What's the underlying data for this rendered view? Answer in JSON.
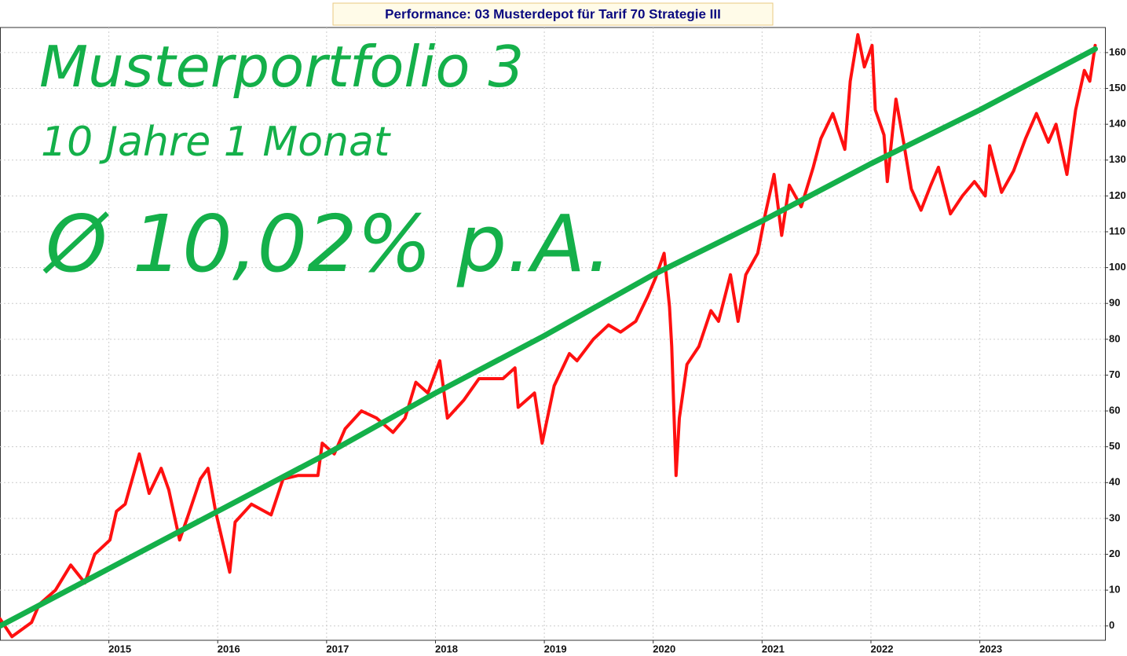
{
  "chart_data": {
    "type": "line",
    "title": "Performance: 03 Musterdepot für Tarif 70 Strategie III",
    "annotations": [
      "Musterportfolio 3",
      "10 Jahre 1 Monat",
      "Ø 10,02% p.A."
    ],
    "xlim": [
      2014.0,
      2024.15
    ],
    "xticks": [
      2015,
      2016,
      2017,
      2018,
      2019,
      2020,
      2021,
      2022,
      2023
    ],
    "ylim": [
      -4,
      167
    ],
    "yticks": [
      0,
      10,
      20,
      30,
      40,
      50,
      60,
      70,
      80,
      90,
      100,
      110,
      120,
      130,
      140,
      150,
      160
    ],
    "grid": true,
    "series": [
      {
        "color": "#ff1010",
        "x": [
          2014.0,
          2014.11,
          2014.29,
          2014.36,
          2014.51,
          2014.65,
          2014.78,
          2014.87,
          2015.01,
          2015.07,
          2015.15,
          2015.28,
          2015.37,
          2015.48,
          2015.55,
          2015.65,
          2015.73,
          2015.84,
          2015.91,
          2015.98,
          2016.11,
          2016.16,
          2016.31,
          2016.49,
          2016.6,
          2016.74,
          2016.92,
          2016.96,
          2017.07,
          2017.17,
          2017.32,
          2017.46,
          2017.61,
          2017.72,
          2017.82,
          2017.93,
          2018.04,
          2018.11,
          2018.26,
          2018.4,
          2018.62,
          2018.73,
          2018.76,
          2018.91,
          2018.98,
          2019.09,
          2019.23,
          2019.3,
          2019.45,
          2019.59,
          2019.7,
          2019.84,
          2019.95,
          2020.02,
          2020.1,
          2020.15,
          2020.17,
          2020.21,
          2020.24,
          2020.31,
          2020.42,
          2020.53,
          2020.6,
          2020.71,
          2020.78,
          2020.85,
          2020.96,
          2021.03,
          2021.11,
          2021.18,
          2021.25,
          2021.36,
          2021.47,
          2021.54,
          2021.65,
          2021.76,
          2021.81,
          2021.88,
          2021.94,
          2022.01,
          2022.04,
          2022.12,
          2022.15,
          2022.23,
          2022.3,
          2022.37,
          2022.46,
          2022.55,
          2022.62,
          2022.73,
          2022.84,
          2022.95,
          2023.05,
          2023.09,
          2023.2,
          2023.31,
          2023.42,
          2023.52,
          2023.63,
          2023.7,
          2023.8,
          2023.88,
          2023.96,
          2024.01,
          2024.06
        ],
        "values": [
          2,
          -3,
          1,
          6,
          10,
          17,
          12,
          20,
          24,
          32,
          34,
          48,
          37,
          44,
          38,
          24,
          31,
          41,
          44,
          32,
          15,
          29,
          34,
          31,
          41,
          42,
          42,
          51,
          48,
          55,
          60,
          58,
          54,
          58,
          68,
          65,
          74,
          58,
          63,
          69,
          69,
          72,
          61,
          65,
          51,
          67,
          76,
          74,
          80,
          84,
          82,
          85,
          92,
          97,
          104,
          89,
          78,
          42,
          58,
          73,
          78,
          88,
          85,
          98,
          85,
          98,
          104,
          115,
          126,
          109,
          123,
          117,
          128,
          136,
          143,
          133,
          152,
          165,
          156,
          162,
          144,
          137,
          124,
          147,
          135,
          122,
          116,
          123,
          128,
          115,
          120,
          124,
          120,
          134,
          121,
          127,
          136,
          143,
          135,
          140,
          126,
          144,
          155,
          152,
          162
        ]
      },
      {
        "color": "#14b04a",
        "x": [
          2014.0,
          2015,
          2016,
          2017,
          2018,
          2019,
          2020,
          2021,
          2022,
          2023,
          2024.06
        ],
        "values": [
          0,
          16,
          32,
          48,
          65,
          81,
          98,
          113,
          129,
          144,
          161
        ]
      }
    ]
  }
}
